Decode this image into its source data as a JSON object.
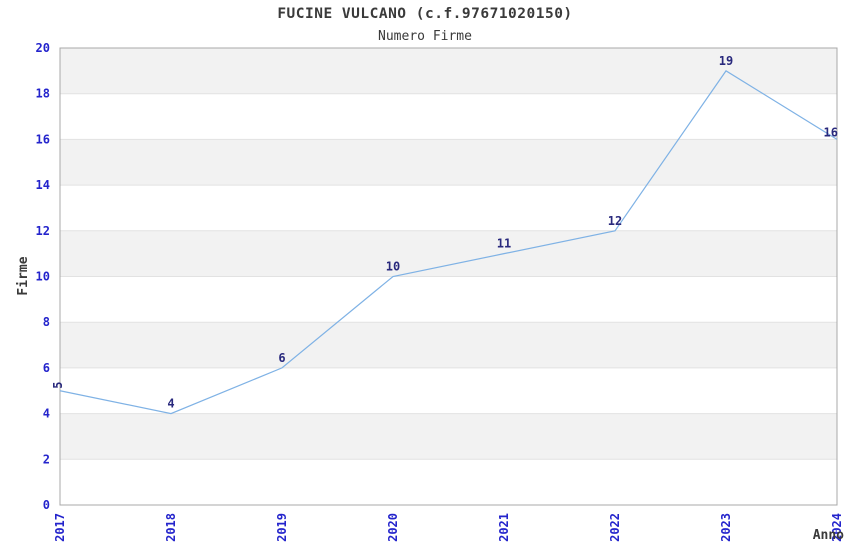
{
  "chart_data": {
    "type": "line",
    "title": "FUCINE VULCANO (c.f.97671020150)",
    "subtitle": "Numero Firme",
    "xlabel": "Anno",
    "ylabel": "Firme",
    "x": [
      2017,
      2018,
      2019,
      2020,
      2021,
      2022,
      2023,
      2024
    ],
    "series": [
      {
        "name": "Numero Firme",
        "values": [
          5,
          4,
          6,
          10,
          11,
          12,
          19,
          16
        ]
      }
    ],
    "point_labels": [
      "5",
      "4",
      "6",
      "10",
      "11",
      "12",
      "19",
      "16"
    ],
    "ylim": [
      0,
      20
    ],
    "ytick_step": 2,
    "yticks": [
      0,
      2,
      4,
      6,
      8,
      10,
      12,
      14,
      16,
      18,
      20
    ],
    "grid": "alternating-horizontal-bands",
    "legend_position": "none",
    "colors": {
      "line": "#7fb2e5",
      "tick_label": "#2424cc",
      "point_label": "#29297d",
      "band": "#f2f2f2",
      "grid_line": "#e2e2e2",
      "border": "#a8a8a8",
      "text": "#3a3a3a",
      "background": "#ffffff"
    }
  }
}
